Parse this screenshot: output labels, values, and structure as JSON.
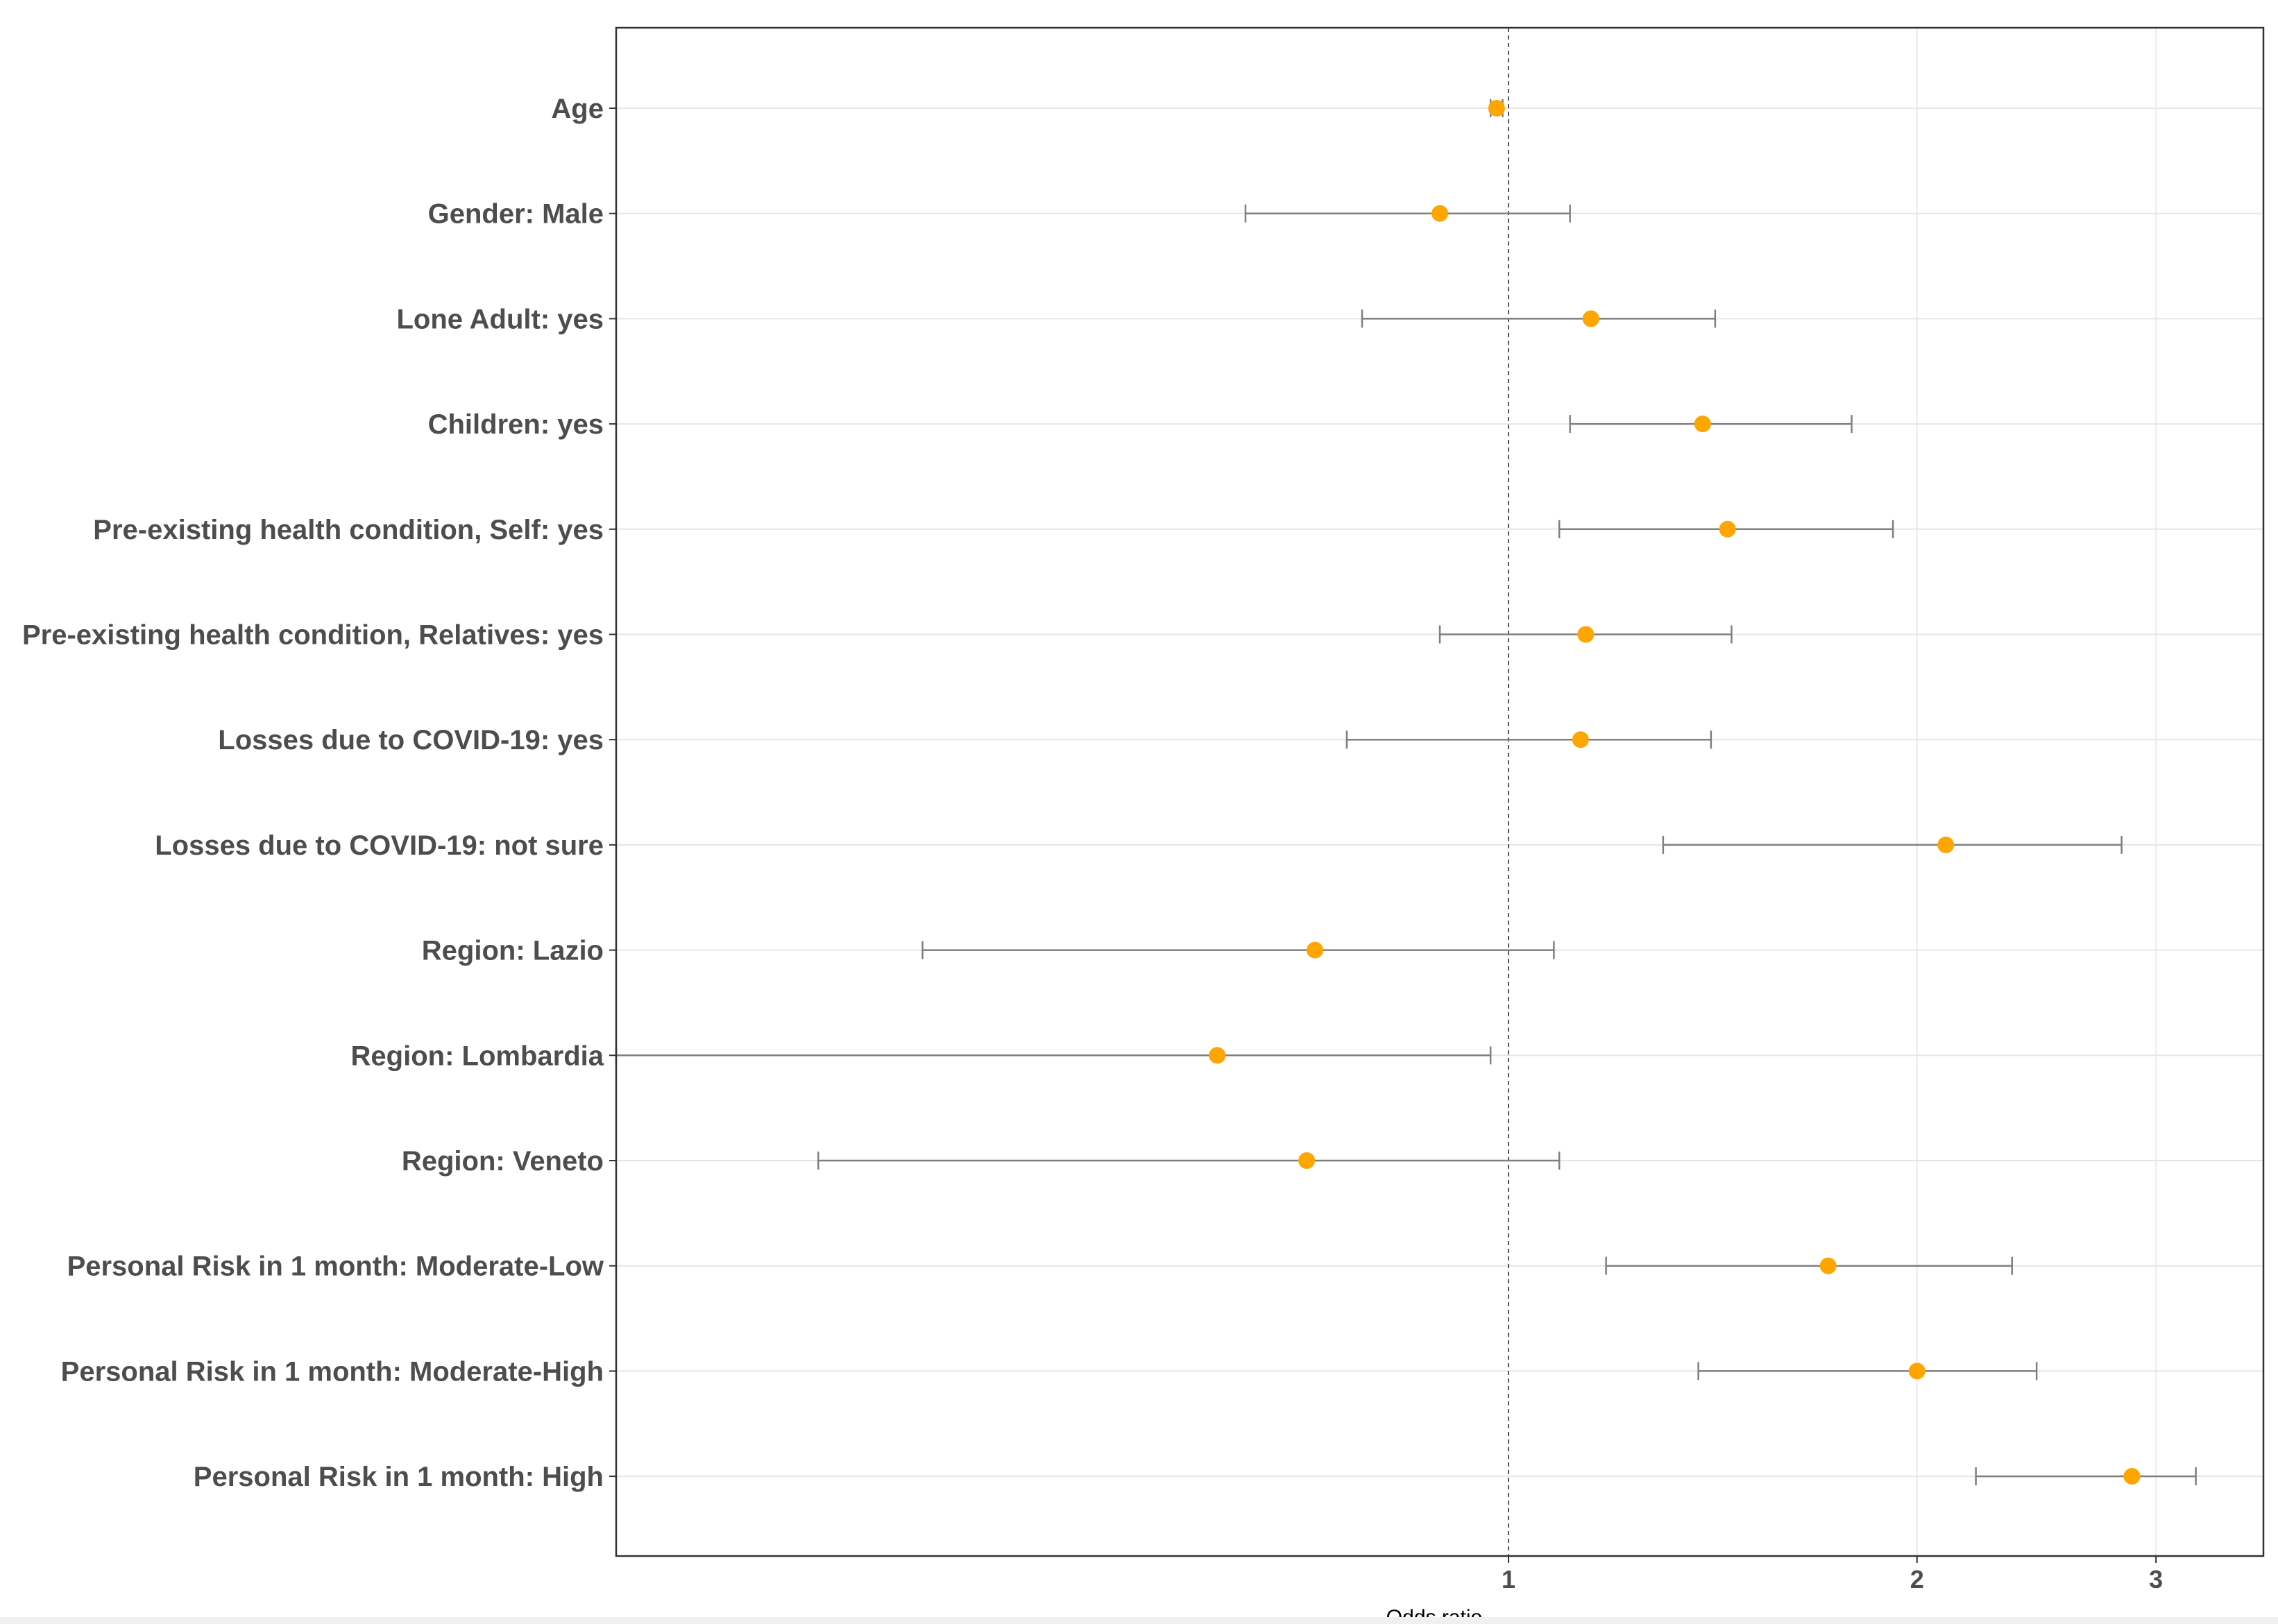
{
  "chart_data": {
    "type": "forest",
    "title": "",
    "xlabel": "Odds ratio",
    "ylabel": "",
    "x_scale": "log",
    "xlim": [
      0.22,
      3.6
    ],
    "x_ticks": [
      {
        "value": 1,
        "label": "1"
      },
      {
        "value": 2,
        "label": "2"
      },
      {
        "value": 3,
        "label": "3"
      }
    ],
    "reference_line": 1,
    "point_color": "#FFA500",
    "errorbar_color": "#7f7f7f",
    "rows": [
      {
        "label": "Age",
        "estimate": 0.98,
        "lower": 0.97,
        "upper": 0.99
      },
      {
        "label": "Gender: Male",
        "estimate": 0.89,
        "lower": 0.64,
        "upper": 1.11
      },
      {
        "label": "Lone Adult: yes",
        "estimate": 1.15,
        "lower": 0.78,
        "upper": 1.42
      },
      {
        "label": "Children: yes",
        "estimate": 1.39,
        "lower": 1.11,
        "upper": 1.79
      },
      {
        "label": "Pre-existing health condition, Self: yes",
        "estimate": 1.45,
        "lower": 1.09,
        "upper": 1.92
      },
      {
        "label": "Pre-existing health condition, Relatives: yes",
        "estimate": 1.14,
        "lower": 0.89,
        "upper": 1.46
      },
      {
        "label": "Losses due to COVID-19: yes",
        "estimate": 1.13,
        "lower": 0.76,
        "upper": 1.41
      },
      {
        "label": "Losses due to COVID-19: not sure",
        "estimate": 2.1,
        "lower": 1.3,
        "upper": 2.83
      },
      {
        "label": "Region: Lazio",
        "estimate": 0.72,
        "lower": 0.37,
        "upper": 1.08
      },
      {
        "label": "Region: Lombardia",
        "estimate": 0.61,
        "lower": 0.22,
        "upper": 0.97
      },
      {
        "label": "Region: Veneto",
        "estimate": 0.71,
        "lower": 0.31,
        "upper": 1.09
      },
      {
        "label": "Personal Risk in 1 month: Moderate-Low",
        "estimate": 1.72,
        "lower": 1.18,
        "upper": 2.35
      },
      {
        "label": "Personal Risk in 1 month: Moderate-High",
        "estimate": 2.0,
        "lower": 1.38,
        "upper": 2.45
      },
      {
        "label": "Personal Risk in 1 month: High",
        "estimate": 2.88,
        "lower": 2.21,
        "upper": 3.21
      }
    ]
  }
}
